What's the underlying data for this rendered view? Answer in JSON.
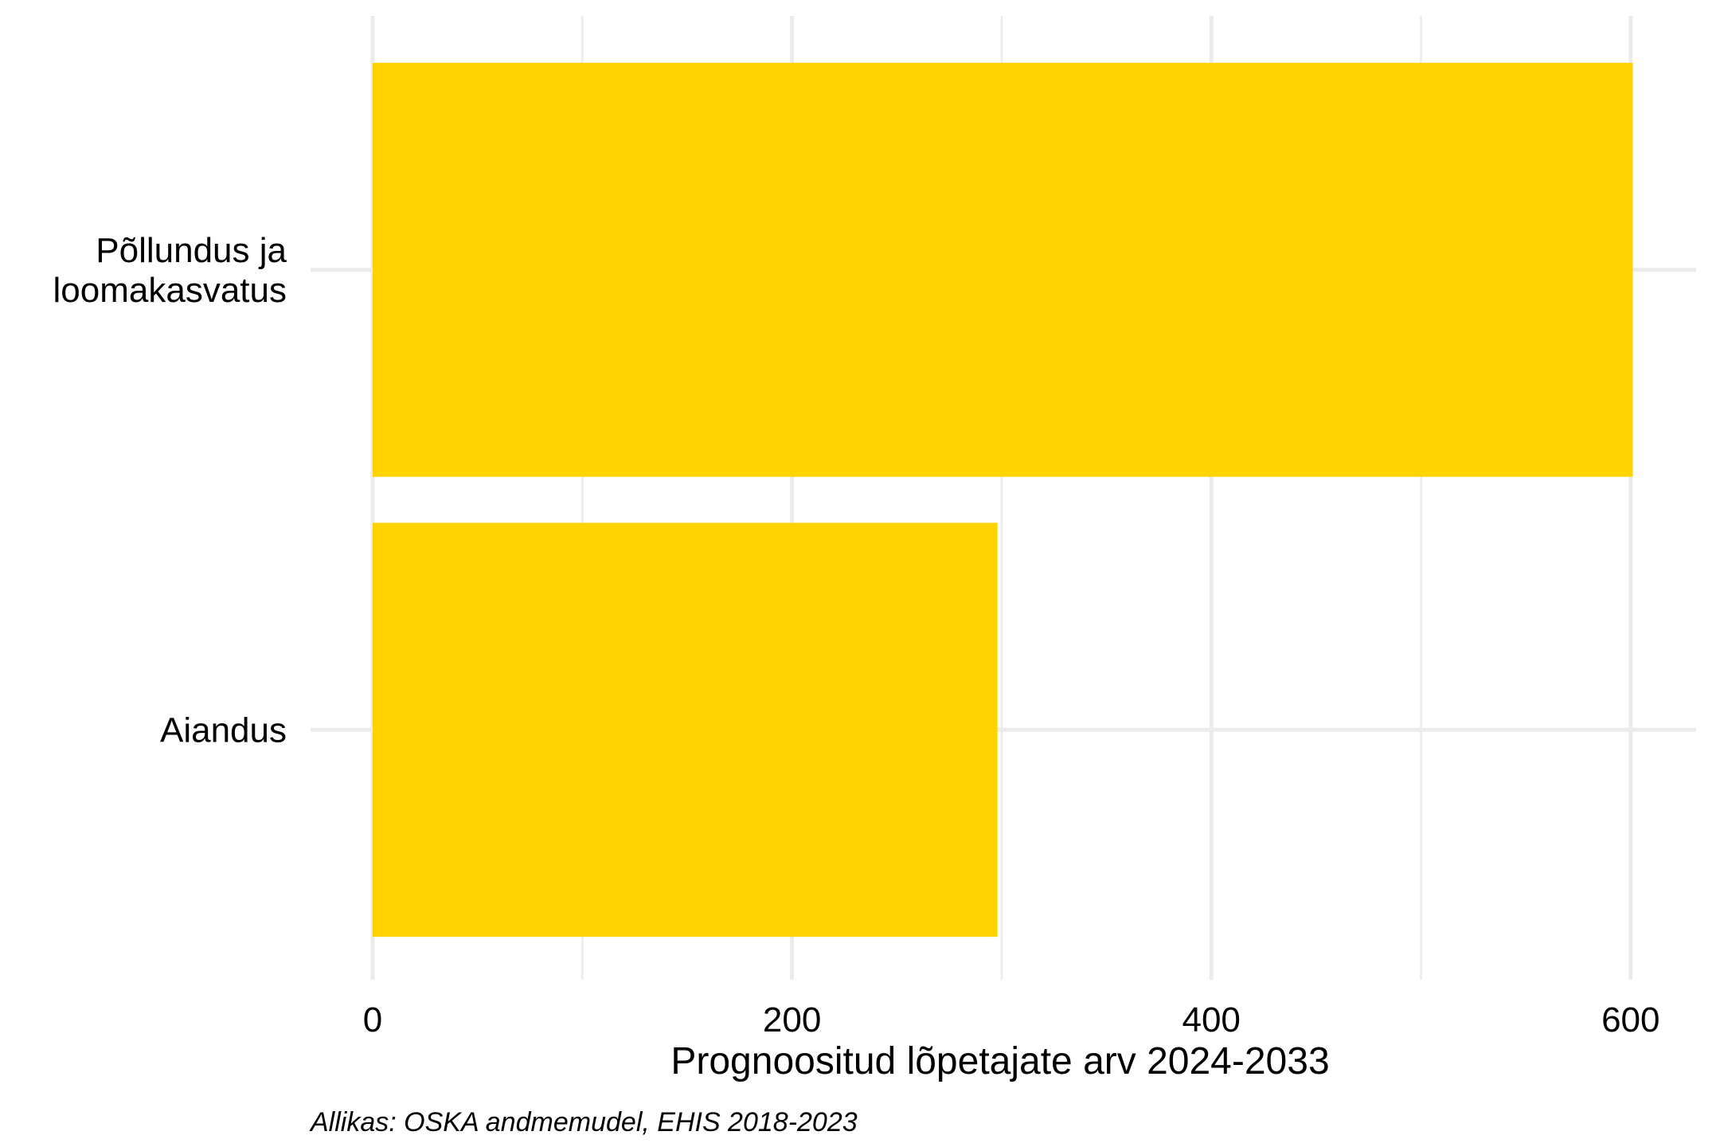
{
  "chart_data": {
    "type": "bar",
    "orientation": "horizontal",
    "categories": [
      "Põllundus ja loomakasvatus",
      "Aiandus"
    ],
    "category_lines": [
      [
        "Põllundus ja",
        "loomakasvatus"
      ],
      [
        "Aiandus"
      ]
    ],
    "values": [
      601,
      298
    ],
    "xlabel": "Prognoositud lõpetajate arv 2024-2033",
    "xlim": [
      0,
      630
    ],
    "xticks": [
      0,
      200,
      400,
      600
    ],
    "xtick_labels": [
      "0",
      "200",
      "400",
      "600"
    ],
    "minor_ticks": [
      100,
      300,
      500
    ],
    "grid": true,
    "bar_color": "#FFD300",
    "grid_color": "#EBEBEB",
    "caption": "Allikas: OSKA andmemudel, EHIS 2018-2023"
  }
}
